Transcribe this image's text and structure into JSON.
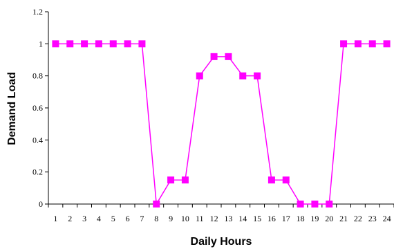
{
  "chart_data": {
    "type": "line",
    "title": "",
    "xlabel": "Daily Hours",
    "ylabel": "Demand Load",
    "categories": [
      "1",
      "2",
      "3",
      "4",
      "5",
      "6",
      "7",
      "8",
      "9",
      "10",
      "11",
      "12",
      "13",
      "14",
      "15",
      "16",
      "17",
      "18",
      "19",
      "20",
      "21",
      "22",
      "23",
      "24"
    ],
    "series": [
      {
        "values": [
          1,
          1,
          1,
          1,
          1,
          1,
          1,
          0,
          0.15,
          0.15,
          0.8,
          0.92,
          0.92,
          0.8,
          0.8,
          0.15,
          0.15,
          0,
          0,
          0,
          1,
          1,
          1,
          1
        ]
      }
    ],
    "ylim": [
      0,
      1.2
    ],
    "yticks": [
      "0",
      "0.2",
      "0.4",
      "0.6",
      "0.8",
      "1",
      "1.2"
    ],
    "grid": false,
    "legend": "none",
    "colors": {
      "series": "#ff00ff",
      "axis": "#000000"
    }
  }
}
